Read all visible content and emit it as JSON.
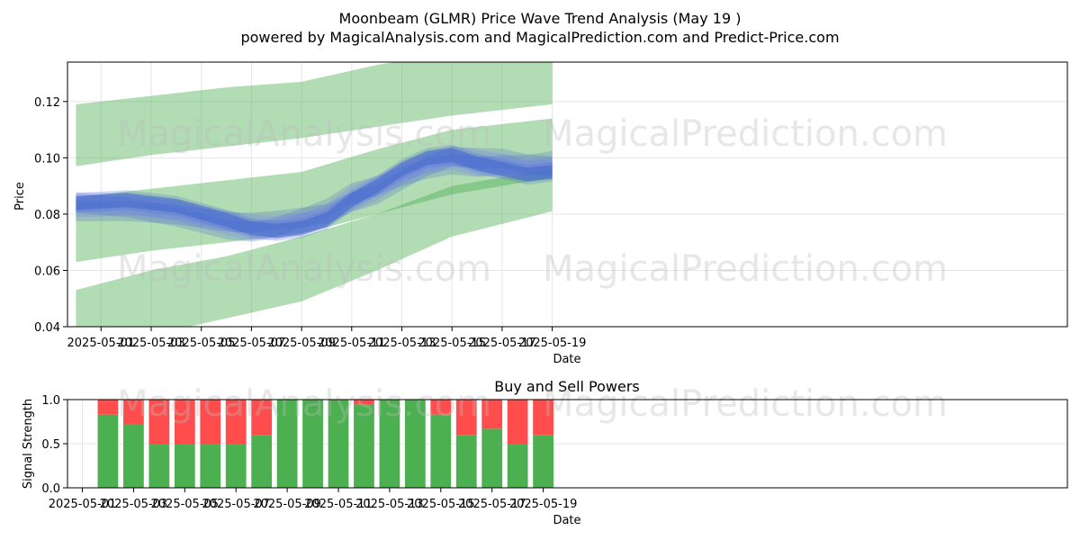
{
  "title": "Moonbeam (GLMR) Price Wave Trend Analysis (May 19 )",
  "subtitle": "powered by MagicalAnalysis.com and MagicalPrediction.com and Predict-Price.com",
  "watermarks": [
    "MagicalAnalysis.com",
    "MagicalPrediction.com"
  ],
  "colors": {
    "band": "#4caf50",
    "wave": "#3a5fcd",
    "wave_light": "#7b7bff",
    "buy": "#4caf50",
    "sell": "#ff4c4c"
  },
  "chart_data": [
    {
      "type": "area",
      "xlabel": "Date",
      "ylabel": "Price",
      "xlim": [
        "2025-04-30",
        "2025-05-20"
      ],
      "ylim": [
        0.04,
        0.134
      ],
      "grid": true,
      "x_ticks": [
        "2025-05-01",
        "2025-05-03",
        "2025-05-05",
        "2025-05-07",
        "2025-05-09",
        "2025-05-11",
        "2025-05-13",
        "2025-05-15",
        "2025-05-17",
        "2025-05-19"
      ],
      "y_ticks": [
        0.04,
        0.06,
        0.08,
        0.1,
        0.12
      ],
      "bands": [
        {
          "x": [
            "2025-04-30",
            "2025-05-03",
            "2025-05-06",
            "2025-05-09",
            "2025-05-12",
            "2025-05-15",
            "2025-05-19"
          ],
          "upper": [
            0.119,
            0.122,
            0.125,
            0.127,
            0.133,
            0.137,
            0.14
          ],
          "lower": [
            0.097,
            0.101,
            0.104,
            0.107,
            0.111,
            0.115,
            0.119
          ]
        },
        {
          "x": [
            "2025-04-30",
            "2025-05-03",
            "2025-05-06",
            "2025-05-09",
            "2025-05-12",
            "2025-05-15",
            "2025-05-19"
          ],
          "upper": [
            0.086,
            0.089,
            0.092,
            0.095,
            0.103,
            0.11,
            0.114
          ],
          "lower": [
            0.063,
            0.067,
            0.07,
            0.073,
            0.08,
            0.087,
            0.093
          ]
        },
        {
          "x": [
            "2025-04-30",
            "2025-05-03",
            "2025-05-06",
            "2025-05-09",
            "2025-05-12",
            "2025-05-15",
            "2025-05-19"
          ],
          "upper": [
            0.053,
            0.06,
            0.065,
            0.072,
            0.08,
            0.09,
            0.096
          ],
          "lower": [
            0.031,
            0.037,
            0.043,
            0.049,
            0.06,
            0.072,
            0.081
          ]
        }
      ],
      "waves": {
        "x": [
          "2025-04-30",
          "2025-05-02",
          "2025-05-04",
          "2025-05-06",
          "2025-05-07",
          "2025-05-08",
          "2025-05-09",
          "2025-05-10",
          "2025-05-11",
          "2025-05-12",
          "2025-05-13",
          "2025-05-14",
          "2025-05-15",
          "2025-05-16",
          "2025-05-17",
          "2025-05-18",
          "2025-05-19"
        ],
        "center": [
          0.084,
          0.085,
          0.083,
          0.078,
          0.075,
          0.074,
          0.075,
          0.078,
          0.085,
          0.09,
          0.096,
          0.1,
          0.101,
          0.098,
          0.096,
          0.094,
          0.095
        ],
        "offsets": [
          -0.004,
          -0.002,
          0,
          0.002,
          0.004
        ],
        "halfwidth": 0.0035
      }
    },
    {
      "type": "bar",
      "title": "Buy and Sell Powers",
      "xlabel": "Date",
      "ylabel": "Signal Strength",
      "ylim": [
        0,
        1.0
      ],
      "grid": true,
      "x_ticks": [
        "2025-05-01",
        "2025-05-03",
        "2025-05-05",
        "2025-05-07",
        "2025-05-09",
        "2025-05-11",
        "2025-05-13",
        "2025-05-15",
        "2025-05-17",
        "2025-05-19"
      ],
      "y_ticks": [
        "0.0",
        "0.5",
        "1.0"
      ],
      "x": [
        "2025-05-02",
        "2025-05-03",
        "2025-05-04",
        "2025-05-05",
        "2025-05-06",
        "2025-05-07",
        "2025-05-08",
        "2025-05-09",
        "2025-05-10",
        "2025-05-11",
        "2025-05-12",
        "2025-05-13",
        "2025-05-14",
        "2025-05-15",
        "2025-05-16",
        "2025-05-17",
        "2025-05-18",
        "2025-05-19"
      ],
      "buy": [
        0.83,
        0.72,
        0.5,
        0.5,
        0.5,
        0.5,
        0.6,
        1.0,
        1.0,
        1.0,
        0.94,
        1.0,
        1.0,
        0.83,
        0.6,
        0.67,
        0.5,
        0.6
      ],
      "sell": [
        0.17,
        0.28,
        0.5,
        0.5,
        0.5,
        0.5,
        0.4,
        0.0,
        0.0,
        0.0,
        0.06,
        0.0,
        0.0,
        0.17,
        0.4,
        0.33,
        0.5,
        0.4
      ]
    }
  ]
}
